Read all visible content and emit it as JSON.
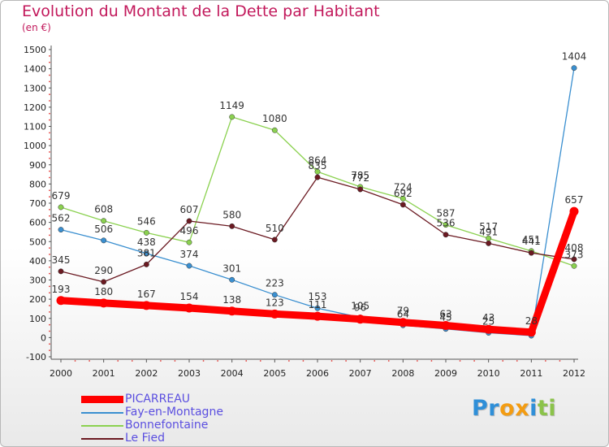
{
  "title": "Evolution du Montant de la Dette par Habitant",
  "unit_label": "(en €)",
  "logo": {
    "text": "Proxiti",
    "letters": [
      "P",
      "r",
      "o",
      "x",
      "i",
      "t",
      "i"
    ],
    "letter_colors": [
      "#2f8fd8",
      "#2f8fd8",
      "#f39c12",
      "#f39c12",
      "#2f8fd8",
      "#8bc34a",
      "#8bc34a"
    ]
  },
  "chart_data": {
    "type": "line",
    "title": "Evolution du Montant de la Dette par Habitant",
    "ylabel": "(en €)",
    "xlabel": "",
    "x": [
      "2000",
      "2001",
      "2002",
      "2003",
      "2004",
      "2005",
      "2006",
      "2007",
      "2008",
      "2009",
      "2010",
      "2011",
      "2012"
    ],
    "ylim": [
      -100,
      1500
    ],
    "yticks": [
      -100,
      0,
      100,
      200,
      300,
      400,
      500,
      600,
      700,
      800,
      900,
      1000,
      1100,
      1200,
      1300,
      1400,
      1500
    ],
    "grid": false,
    "legend_position": "bottom-left",
    "series": [
      {
        "name": "Fay-en-Montagne",
        "color": "#3a8fd0",
        "values": [
          562,
          506,
          438,
          374,
          301,
          223,
          153,
          105,
          64,
          45,
          25,
          10,
          1404
        ],
        "labels": [
          "562",
          "506",
          "438",
          "374",
          "301",
          "223",
          "153",
          "105",
          "64",
          "45",
          "25",
          "",
          "1404"
        ]
      },
      {
        "name": "Bonnefontaine",
        "color": "#8bd150",
        "values": [
          679,
          608,
          546,
          496,
          1149,
          1080,
          864,
          785,
          724,
          587,
          517,
          451,
          373
        ],
        "labels": [
          "679",
          "608",
          "546",
          "496",
          "1149",
          "1080",
          "864",
          "785",
          "724",
          "587",
          "517",
          "451",
          "373"
        ]
      },
      {
        "name": "Le Fied",
        "color": "#6b1a22",
        "values": [
          345,
          290,
          381,
          607,
          580,
          510,
          835,
          772,
          692,
          536,
          491,
          441,
          408
        ],
        "labels": [
          "345",
          "290",
          "381",
          "607",
          "580",
          "510",
          "835",
          "772",
          "692",
          "536",
          "491",
          "441",
          "408"
        ]
      },
      {
        "name": "PICARREAU",
        "color": "#ff0000",
        "values": [
          193,
          180,
          167,
          154,
          138,
          123,
          111,
          96,
          79,
          63,
          43,
          28,
          657
        ],
        "labels": [
          "193",
          "180",
          "167",
          "154",
          "138",
          "123",
          "111",
          "96",
          "79",
          "63",
          "43",
          "28",
          "657"
        ]
      }
    ]
  }
}
